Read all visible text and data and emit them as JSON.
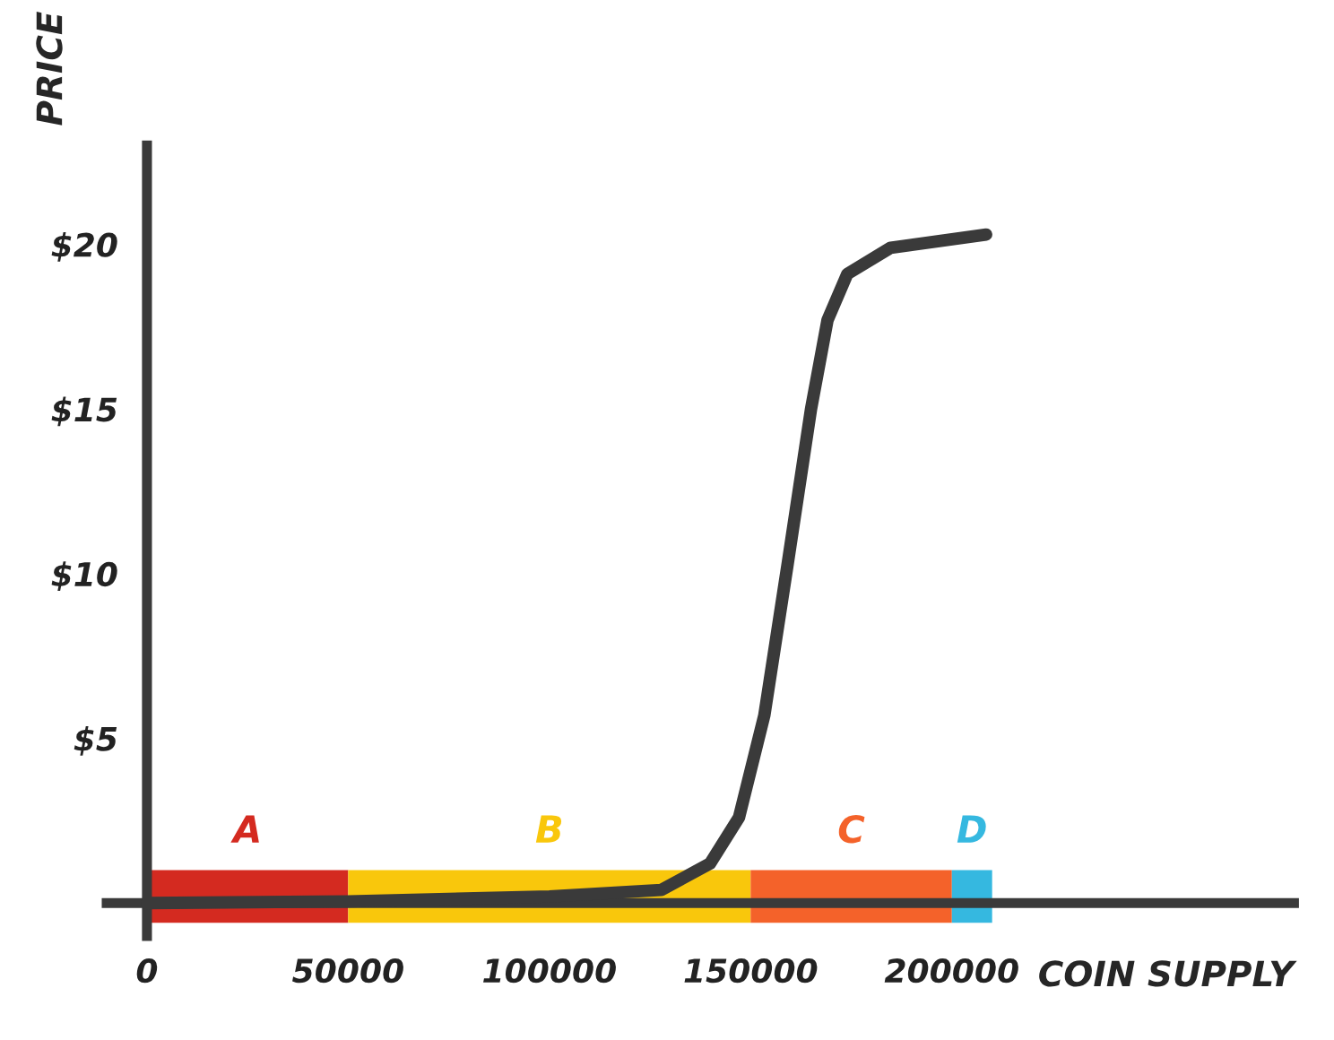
{
  "chart_data": {
    "type": "line",
    "xlabel": "COIN SUPPLY",
    "ylabel": "PRICE",
    "series": [
      {
        "color": "#3a3a3a",
        "x": [
          0,
          50000,
          100000,
          127800,
          139900,
          147100,
          153400,
          159200,
          165000,
          169100,
          174000,
          184800,
          208500
        ],
        "values": [
          0,
          0.05,
          0.2,
          0.4,
          1.2,
          2.6,
          5.7,
          10.3,
          15.0,
          17.7,
          19.1,
          19.9,
          20.3
        ]
      }
    ],
    "xlim": [
      -10000,
      285000
    ],
    "ylim": [
      -1,
      23
    ],
    "xticks": [
      0,
      50000,
      100000,
      150000,
      200000
    ],
    "yticks": [
      {
        "value": 5,
        "label": "$5"
      },
      {
        "value": 10,
        "label": "$10"
      },
      {
        "value": 15,
        "label": "$15"
      },
      {
        "value": 20,
        "label": "$20"
      }
    ],
    "bands": [
      {
        "axis": "x",
        "from": 0,
        "to": 50000,
        "label": "A",
        "color": "#d42a20"
      },
      {
        "axis": "x",
        "from": 50000,
        "to": 150000,
        "label": "B",
        "color": "#f9c70c"
      },
      {
        "axis": "x",
        "from": 150000,
        "to": 200000,
        "label": "C",
        "color": "#f4622a"
      },
      {
        "axis": "x",
        "from": 200000,
        "to": 210000,
        "label": "D",
        "color": "#35b8e0"
      }
    ],
    "grid": false,
    "legend": false,
    "marker": "none",
    "line_style": "solid"
  }
}
